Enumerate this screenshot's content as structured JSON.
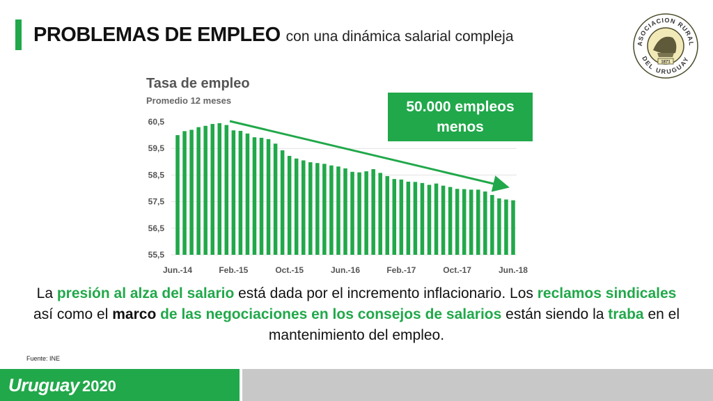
{
  "header": {
    "title_main": "PROBLEMAS DE EMPLEO",
    "title_sub": "con una dinámica salarial compleja",
    "accent_color": "#21a84a"
  },
  "logo": {
    "top_text": "ASOCIACION RURAL",
    "bottom_text": "DEL URUGUAY",
    "year": "1871"
  },
  "chart_data": {
    "type": "bar",
    "title": "Tasa de empleo",
    "subtitle": "Promedio 12 meses",
    "xlabel": "",
    "ylabel": "",
    "ylim": [
      55.5,
      60.5
    ],
    "y_ticks": [
      "60,5",
      "59,5",
      "58,5",
      "57,5",
      "56,5",
      "55,5"
    ],
    "x_tick_labels": [
      "Jun.-14",
      "Feb.-15",
      "Oct.-15",
      "Jun.-16",
      "Feb.-17",
      "Oct.-17",
      "Jun.-18"
    ],
    "grid": true,
    "bar_color": "#21a84a",
    "values": [
      60.0,
      60.15,
      60.2,
      60.3,
      60.35,
      60.42,
      60.45,
      60.38,
      60.18,
      60.16,
      60.06,
      59.92,
      59.9,
      59.85,
      59.68,
      59.43,
      59.22,
      59.12,
      59.05,
      58.98,
      58.95,
      58.92,
      58.86,
      58.82,
      58.75,
      58.62,
      58.6,
      58.64,
      58.72,
      58.58,
      58.46,
      58.35,
      58.33,
      58.25,
      58.24,
      58.2,
      58.13,
      58.18,
      58.1,
      58.05,
      57.98,
      57.97,
      57.95,
      57.95,
      57.88,
      57.75,
      57.62,
      57.58,
      57.55
    ],
    "annotation": {
      "text": "50.000 empleos menos",
      "color": "#21a84a",
      "trend_arrow": true
    }
  },
  "paragraph": {
    "p1": "La ",
    "g1": "presión al alza del salario",
    "p2": " está dada por el incremento inflacionario. Los ",
    "g2": "reclamos sindicales",
    "p3": " así como el ",
    "b1": "marco",
    "g3": " de las negociaciones  en los consejos de salarios",
    "p4": " están siendo la  ",
    "g4": "traba",
    "p5": " en el mantenimiento  del empleo."
  },
  "source": "Fuente: INE",
  "footer": {
    "brand": "Uruguay",
    "year": "2020",
    "left_color": "#21a84a",
    "right_color": "#c8c8c8"
  }
}
